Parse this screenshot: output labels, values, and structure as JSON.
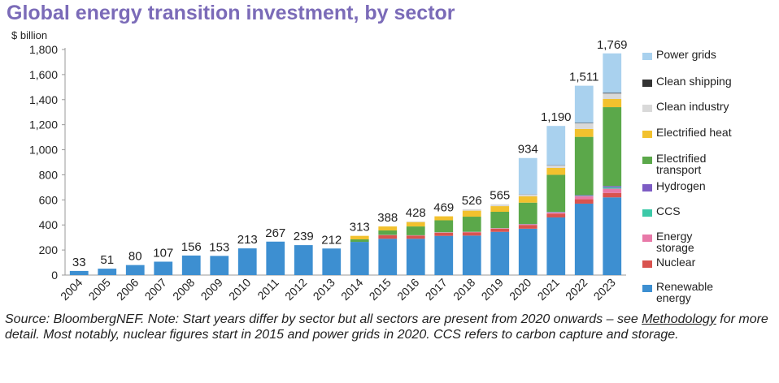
{
  "title": "Global energy transition investment, by sector",
  "unit_label": "$ billion",
  "source": {
    "prefix": "Source: BloombergNEF. Note: Start years differ by sector but all sectors are present from 2020 onwards – see ",
    "link": "Methodology",
    "suffix": " for more detail. Most notably, nuclear figures start in 2015 and power grids in 2020. CCS refers to carbon capture and storage."
  },
  "colors": {
    "Renewable energy": "#3d8fd1",
    "Nuclear": "#d9534f",
    "Energy storage": "#e879a8",
    "CCS": "#3cc9a8",
    "Hydrogen": "#7d5cc4",
    "Electrified transport": "#5ba84a",
    "Electrified heat": "#f2c12e",
    "Clean industry": "#d9d9d9",
    "Clean shipping": "#333333",
    "Power grids": "#a9d1ee"
  },
  "chart_data": {
    "type": "bar",
    "stacked": true,
    "categories": [
      "2004",
      "2005",
      "2006",
      "2007",
      "2008",
      "2009",
      "2010",
      "2011",
      "2012",
      "2013",
      "2014",
      "2015",
      "2016",
      "2017",
      "2018",
      "2019",
      "2020",
      "2021",
      "2022",
      "2023"
    ],
    "totals": [
      33,
      51,
      80,
      107,
      156,
      153,
      213,
      267,
      239,
      212,
      313,
      388,
      428,
      469,
      526,
      565,
      934,
      1190,
      1511,
      1769
    ],
    "total_labels": [
      "33",
      "51",
      "80",
      "107",
      "156",
      "153",
      "213",
      "267",
      "239",
      "212",
      "313",
      "388",
      "428",
      "469",
      "526",
      "565",
      "934",
      "1,190",
      "1,511",
      "1,769"
    ],
    "ylim": [
      0,
      1800
    ],
    "yticks": [
      0,
      200,
      400,
      600,
      800,
      1000,
      1200,
      1400,
      1600,
      1800
    ],
    "ytick_labels": [
      "0",
      "200",
      "400",
      "600",
      "800",
      "1,000",
      "1,200",
      "1,400",
      "1,600",
      "1,800"
    ],
    "ylabel": "$ billion",
    "legend_position": "right",
    "series": [
      {
        "name": "Renewable energy",
        "values": [
          33,
          51,
          80,
          107,
          156,
          153,
          213,
          267,
          239,
          212,
          265,
          290,
          290,
          313,
          315,
          345,
          370,
          460,
          570,
          620
        ]
      },
      {
        "name": "Nuclear",
        "values": [
          0,
          0,
          0,
          0,
          0,
          0,
          0,
          0,
          0,
          0,
          0,
          28,
          25,
          25,
          26,
          25,
          30,
          30,
          35,
          35
        ]
      },
      {
        "name": "Energy storage",
        "values": [
          0,
          0,
          0,
          0,
          0,
          0,
          0,
          0,
          0,
          0,
          0,
          2,
          2,
          3,
          4,
          4,
          5,
          10,
          25,
          35
        ]
      },
      {
        "name": "CCS",
        "values": [
          0,
          0,
          0,
          0,
          0,
          0,
          0,
          0,
          0,
          0,
          0,
          1,
          1,
          1,
          1,
          1,
          2,
          3,
          3,
          10
        ]
      },
      {
        "name": "Hydrogen",
        "values": [
          0,
          0,
          0,
          0,
          0,
          0,
          0,
          0,
          0,
          0,
          0,
          0,
          0,
          0,
          0,
          0,
          1,
          2,
          5,
          10
        ]
      },
      {
        "name": "Electrified transport",
        "values": [
          0,
          0,
          0,
          0,
          0,
          0,
          0,
          0,
          0,
          0,
          20,
          35,
          70,
          95,
          120,
          130,
          170,
          295,
          465,
          630
        ]
      },
      {
        "name": "Electrified heat",
        "values": [
          0,
          0,
          0,
          0,
          0,
          0,
          0,
          0,
          0,
          0,
          28,
          32,
          35,
          32,
          48,
          45,
          50,
          55,
          63,
          65
        ]
      },
      {
        "name": "Clean industry",
        "values": [
          0,
          0,
          0,
          0,
          0,
          0,
          0,
          0,
          0,
          0,
          0,
          0,
          5,
          0,
          12,
          15,
          15,
          20,
          45,
          44
        ]
      },
      {
        "name": "Clean shipping",
        "values": [
          0,
          0,
          0,
          0,
          0,
          0,
          0,
          0,
          0,
          0,
          0,
          0,
          0,
          0,
          0,
          0,
          1,
          2,
          3,
          5
        ]
      },
      {
        "name": "Power grids",
        "values": [
          0,
          0,
          0,
          0,
          0,
          0,
          0,
          0,
          0,
          0,
          0,
          0,
          0,
          0,
          0,
          0,
          290,
          313,
          297,
          315
        ]
      }
    ]
  },
  "legend": [
    {
      "name": "Power grids",
      "label": "Power grids"
    },
    {
      "name": "Clean shipping",
      "label": "Clean shipping"
    },
    {
      "name": "Clean industry",
      "label": "Clean industry"
    },
    {
      "name": "Electrified heat",
      "label": "Electrified heat"
    },
    {
      "name": "Electrified transport",
      "label": "Electrified\ntransport"
    },
    {
      "name": "Hydrogen",
      "label": "Hydrogen"
    },
    {
      "name": "CCS",
      "label": "CCS"
    },
    {
      "name": "Energy storage",
      "label": "Energy\nstorage"
    },
    {
      "name": "Nuclear",
      "label": "Nuclear"
    },
    {
      "name": "Renewable energy",
      "label": "Renewable\nenergy"
    }
  ]
}
